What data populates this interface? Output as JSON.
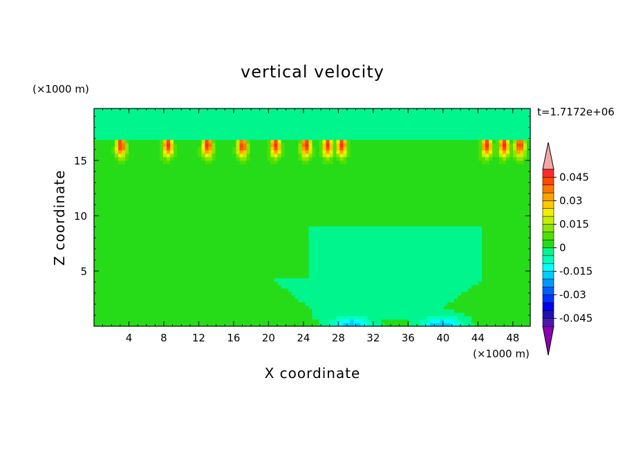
{
  "chart_data": {
    "type": "heatmap",
    "title": "vertical velocity",
    "xlabel": "X coordinate",
    "ylabel": "Z coordinate",
    "x_unit": "(×1000 m)",
    "y_unit": "(×1000 m)",
    "time_label": "t=1.7172e+06",
    "xlim": [
      0,
      50
    ],
    "ylim": [
      0,
      19.7
    ],
    "x_ticks": [
      4,
      8,
      12,
      16,
      20,
      24,
      28,
      32,
      36,
      40,
      44,
      48
    ],
    "y_ticks": [
      5,
      10,
      15
    ],
    "colorbar": {
      "min": -0.05,
      "max": 0.05,
      "step": 0.005,
      "tick_values": [
        0.045,
        0.03,
        0.015,
        0,
        -0.015,
        -0.03,
        -0.045
      ],
      "tick_labels": [
        "0.045",
        "0.03",
        "0.015",
        "0",
        "-0.015",
        "-0.03",
        "-0.045"
      ],
      "over_color": "#f4a6a6",
      "under_color": "#8a00b0",
      "colors_high_to_low": [
        "#ff2a2a",
        "#ff4a00",
        "#ff7800",
        "#ffa000",
        "#ffc800",
        "#f0ee00",
        "#c4ee00",
        "#8ae600",
        "#4ee000",
        "#26dc18",
        "#00f58c",
        "#00ffbe",
        "#00ffff",
        "#00ccff",
        "#0096ff",
        "#0060ff",
        "#0030ff",
        "#0000ee",
        "#2010b0",
        "#4a18a8"
      ]
    },
    "field": {
      "background_value": -0.004,
      "plume_region": [
        [
          0,
          24.5
        ],
        [
          44.5,
          50
        ]
      ],
      "updraft_columns_x": [
        3.1,
        8.5,
        13.0,
        17.0,
        20.8,
        24.3,
        26.8,
        28.4,
        45.0,
        47.0,
        48.8
      ],
      "updraft_peak_z": 16.8,
      "downdraft_centers_x": [
        29.5,
        39.8
      ],
      "downdraft_min": -0.02
    }
  }
}
